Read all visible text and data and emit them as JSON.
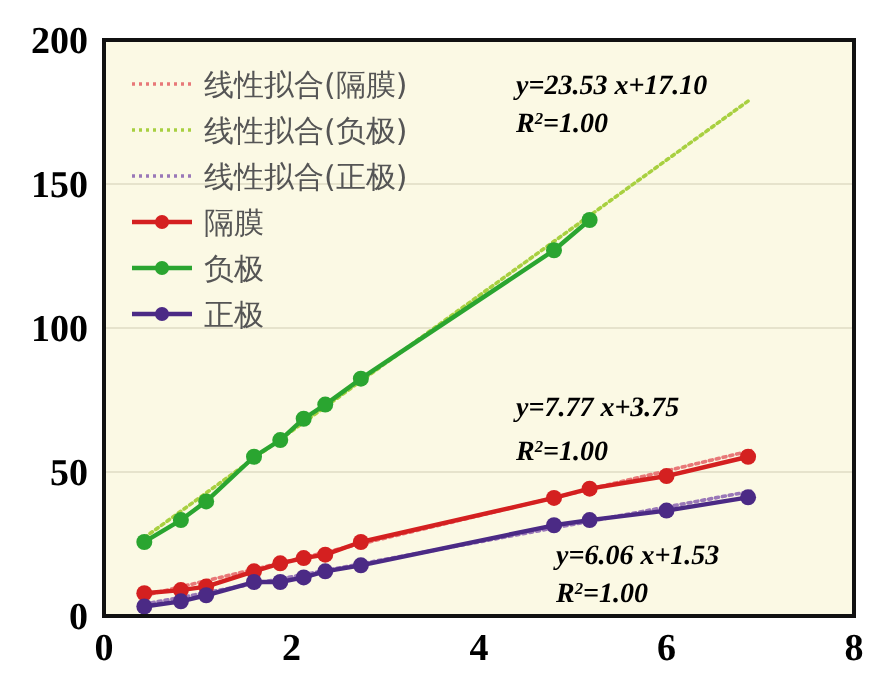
{
  "chart_data": {
    "type": "line",
    "xlim": [
      0,
      8
    ],
    "xticks": [
      0,
      2,
      4,
      6,
      8
    ],
    "ylim": [
      0,
      200
    ],
    "yticks": [
      0,
      50,
      100,
      150,
      200
    ],
    "grid": "y",
    "legend": "top left",
    "marker": "circle",
    "series": [
      {
        "name": "线性拟合(隔膜)",
        "color": "#e87878",
        "type": "line",
        "line_style": "dotted",
        "marker": "none",
        "x": [
          0.43,
          6.9
        ],
        "values": [
          7.1,
          57.4
        ]
      },
      {
        "name": "线性拟合(负极)",
        "color": "#a8d040",
        "type": "line",
        "line_style": "dotted",
        "marker": "none",
        "x": [
          0.43,
          6.9
        ],
        "values": [
          27.2,
          179.5
        ]
      },
      {
        "name": "线性拟合(正极)",
        "color": "#9a78b8",
        "type": "line",
        "line_style": "dotted",
        "marker": "none",
        "x": [
          0.43,
          6.9
        ],
        "values": [
          4.1,
          43.3
        ]
      },
      {
        "name": "隔膜",
        "color": "#d42020",
        "x": [
          0.43,
          0.82,
          1.09,
          1.6,
          1.88,
          2.13,
          2.36,
          2.74,
          4.8,
          5.18,
          6.0,
          6.87
        ],
        "values": [
          7.9,
          9,
          10.2,
          15.5,
          18.3,
          20.1,
          21.3,
          25.7,
          41,
          44.2,
          48.6,
          55.3
        ]
      },
      {
        "name": "负极",
        "color": "#2aa530",
        "x": [
          0.43,
          0.82,
          1.09,
          1.6,
          1.88,
          2.13,
          2.36,
          2.74,
          4.8,
          5.18
        ],
        "values": [
          25.7,
          33.3,
          39.8,
          55.3,
          61.1,
          68.5,
          73.4,
          82.4,
          127,
          137.5
        ]
      },
      {
        "name": "正极",
        "color": "#4b2a85",
        "x": [
          0.43,
          0.82,
          1.09,
          1.6,
          1.88,
          2.13,
          2.36,
          2.74,
          4.8,
          5.18,
          6.0,
          6.87
        ],
        "values": [
          3.3,
          5.1,
          7.2,
          11.8,
          11.8,
          13.4,
          15.5,
          17.6,
          31.5,
          33.3,
          36.6,
          41.2
        ]
      }
    ],
    "annotations": [
      "y=23.53 x+17.10",
      "R$^{2}$=1.00",
      "y=7.77 x+3.75",
      "R$^{2}$=1.00",
      "y=6.06 x+1.53",
      "R$^{2}$=1.00"
    ]
  }
}
